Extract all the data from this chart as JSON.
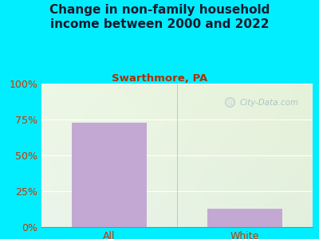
{
  "title": "Change in non-family household\nincome between 2000 and 2022",
  "subtitle": "Swarthmore, PA",
  "categories": [
    "All",
    "White"
  ],
  "values": [
    73,
    13
  ],
  "bar_color": "#c4a8d4",
  "title_color": "#1a1a2e",
  "subtitle_color": "#b03000",
  "tick_label_color": "#cc3300",
  "background_outer": "#00eeff",
  "ylim": [
    0,
    100
  ],
  "yticks": [
    0,
    25,
    50,
    75,
    100
  ],
  "ytick_labels": [
    "0%",
    "25%",
    "50%",
    "75%",
    "100%"
  ],
  "title_fontsize": 11,
  "subtitle_fontsize": 9.5,
  "tick_fontsize": 9,
  "watermark": "City-Data.com"
}
